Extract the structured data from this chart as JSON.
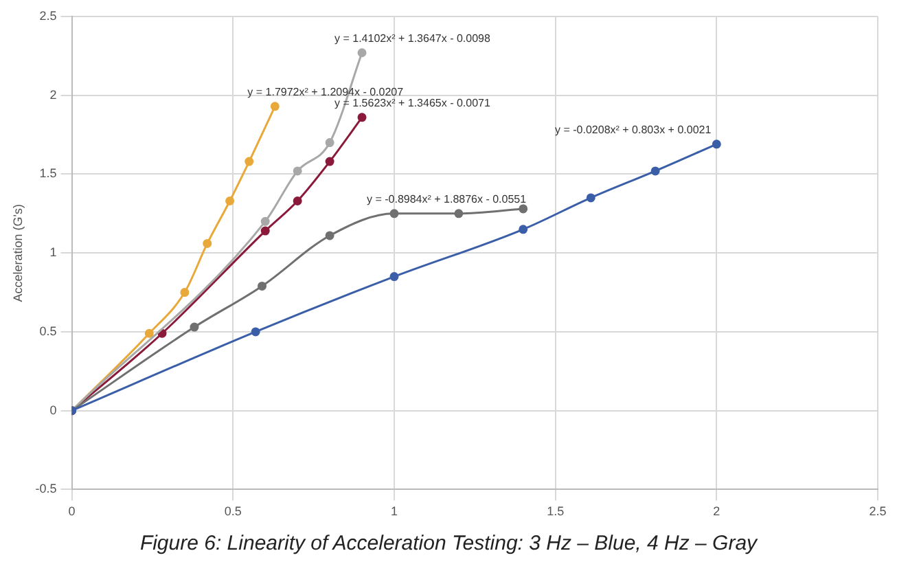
{
  "chart_data": {
    "type": "line",
    "title": "Figure 6: Linearity of Acceleration Testing: 3 Hz – Blue, 4 Hz – Gray",
    "ylabel": "Acceleration (G's)",
    "xlim": [
      0,
      2.5
    ],
    "xticks": [
      0,
      0.5,
      1,
      1.5,
      2,
      2.5
    ],
    "ylim": [
      -0.5,
      2.5
    ],
    "yticks": [
      -0.5,
      0,
      0.5,
      1,
      1.5,
      2,
      2.5
    ],
    "grid": true,
    "legend": false,
    "marker": "circle",
    "line_style": "solid",
    "series": [
      {
        "color": "#3a5ea8",
        "x": [
          0,
          0.57,
          1.0,
          1.4,
          1.61,
          1.81,
          2.0
        ],
        "values": [
          0,
          0.5,
          0.85,
          1.15,
          1.35,
          1.52,
          1.69
        ]
      },
      {
        "color": "#707070",
        "x": [
          0,
          0.38,
          0.59,
          0.8,
          1.0,
          1.2,
          1.4
        ],
        "values": [
          0,
          0.53,
          0.79,
          1.11,
          1.25,
          1.25,
          1.28
        ]
      },
      {
        "color": "#a8a8a8",
        "x": [
          0,
          0.6,
          0.7,
          0.8,
          0.9
        ],
        "values": [
          0,
          1.2,
          1.52,
          1.7,
          2.27
        ]
      },
      {
        "color": "#8b1a3a",
        "x": [
          0,
          0.28,
          0.6,
          0.7,
          0.8,
          0.9
        ],
        "values": [
          0,
          0.49,
          1.14,
          1.33,
          1.58,
          1.86
        ]
      },
      {
        "color": "#e8a93a",
        "x": [
          0,
          0.24,
          0.35,
          0.42,
          0.49,
          0.55,
          0.63
        ],
        "values": [
          0,
          0.49,
          0.75,
          1.06,
          1.33,
          1.58,
          1.93
        ]
      }
    ],
    "annotations": [
      {
        "text": "y = -0.0208x² + 0.803x + 0.0021",
        "x": 2.0,
        "y": 1.69
      },
      {
        "text": "y = -0.8984x² + 1.8876x - 0.0551",
        "x": 1.0,
        "y": 1.25
      },
      {
        "text": "y = 1.4102x² + 1.3647x - 0.0098",
        "x": 0.9,
        "y": 2.27
      },
      {
        "text": "y = 1.5623x² + 1.3465x - 0.0071",
        "x": 0.9,
        "y": 1.86
      },
      {
        "text": "y = 1.7972x² + 1.2094x - 0.0207",
        "x": 0.63,
        "y": 1.93
      }
    ]
  }
}
